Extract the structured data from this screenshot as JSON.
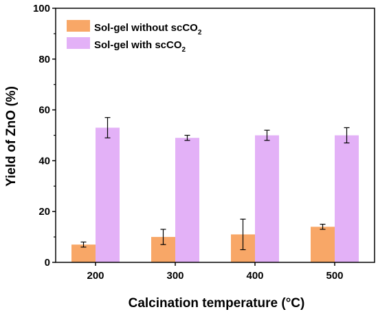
{
  "chart_data": {
    "type": "bar",
    "categories": [
      "200",
      "300",
      "400",
      "500"
    ],
    "series": [
      {
        "name": "Sol-gel without scCO2",
        "legend_main": "Sol-gel without scCO",
        "legend_sub": "2",
        "color": "#f8a767",
        "values": [
          7,
          10,
          11,
          14
        ],
        "errors": [
          1,
          3,
          6,
          1
        ]
      },
      {
        "name": "Sol-gel with scCO2",
        "legend_main": "Sol-gel with scCO",
        "legend_sub": "2",
        "color": "#e3b1f7",
        "values": [
          53,
          49,
          50,
          50
        ],
        "errors": [
          4,
          1,
          2,
          3
        ]
      }
    ],
    "xlabel": "Calcination temperature (°C)",
    "ylabel": "Yield of ZnO (%)",
    "ylim": [
      0,
      100
    ],
    "yticks": [
      "0",
      "20",
      "40",
      "60",
      "80",
      "100"
    ],
    "legend_position": "top-left",
    "grid": false
  }
}
